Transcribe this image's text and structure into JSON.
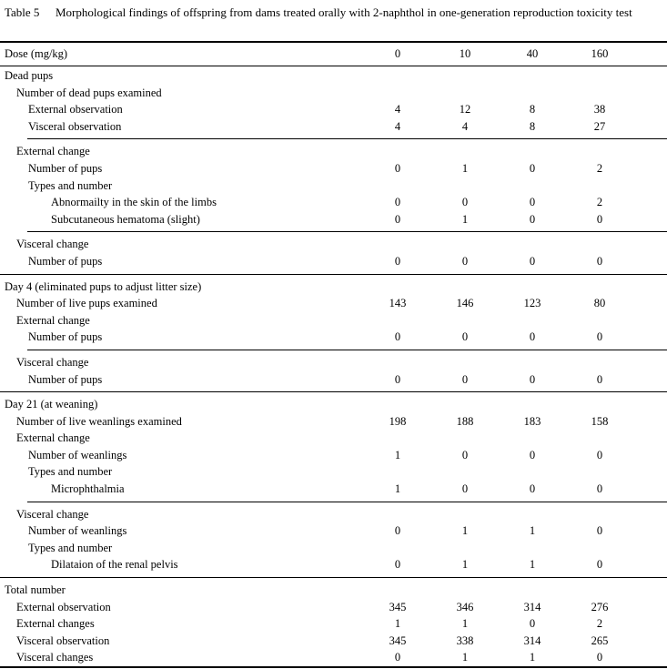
{
  "title": {
    "label": "Table 5",
    "text": "Morphological findings of offspring from dams treated orally with 2-naphthol in one-generation reproduction toxicity test"
  },
  "header": {
    "label": "Dose (mg/kg)",
    "doses": [
      "0",
      "10",
      "40",
      "160"
    ]
  },
  "rows": [
    {
      "label": "Dead pups",
      "indent": 0,
      "values": null
    },
    {
      "label": "Number of dead pups examined",
      "indent": 1,
      "values": null
    },
    {
      "label": "External observation",
      "indent": 2,
      "values": [
        "4",
        "12",
        "8",
        "38"
      ]
    },
    {
      "label": "Visceral observation",
      "indent": 2,
      "values": [
        "4",
        "4",
        "8",
        "27"
      ]
    },
    {
      "rule": "partial"
    },
    {
      "label": "External change",
      "indent": 1,
      "values": null
    },
    {
      "label": "Number of pups",
      "indent": 2,
      "values": [
        "0",
        "1",
        "0",
        "2"
      ]
    },
    {
      "label": "Types and number",
      "indent": 2,
      "values": null
    },
    {
      "label": "Abnormailty in the skin of the limbs",
      "indent": 3,
      "values": [
        "0",
        "0",
        "0",
        "2"
      ]
    },
    {
      "label": "Subcutaneous hematoma (slight)",
      "indent": 3,
      "values": [
        "0",
        "1",
        "0",
        "0"
      ]
    },
    {
      "rule": "partial"
    },
    {
      "label": "Visceral change",
      "indent": 1,
      "values": null
    },
    {
      "label": "Number of pups",
      "indent": 2,
      "values": [
        "0",
        "0",
        "0",
        "0"
      ]
    },
    {
      "rule": "full"
    },
    {
      "label": "Day 4 (eliminated pups to adjust litter size)",
      "indent": 0,
      "values": null
    },
    {
      "label": "Number of live pups examined",
      "indent": 1,
      "values": [
        "143",
        "146",
        "123",
        "80"
      ]
    },
    {
      "label": "External change",
      "indent": 1,
      "values": null
    },
    {
      "label": "Number of pups",
      "indent": 2,
      "values": [
        "0",
        "0",
        "0",
        "0"
      ]
    },
    {
      "rule": "partial"
    },
    {
      "label": "Visceral change",
      "indent": 1,
      "values": null
    },
    {
      "label": "Number of pups",
      "indent": 2,
      "values": [
        "0",
        "0",
        "0",
        "0"
      ]
    },
    {
      "rule": "full"
    },
    {
      "label": "Day 21 (at weaning)",
      "indent": 0,
      "values": null
    },
    {
      "label": "Number of live weanlings examined",
      "indent": 1,
      "values": [
        "198",
        "188",
        "183",
        "158"
      ]
    },
    {
      "label": "External change",
      "indent": 1,
      "values": null
    },
    {
      "label": "Number of weanlings",
      "indent": 2,
      "values": [
        "1",
        "0",
        "0",
        "0"
      ]
    },
    {
      "label": "Types and number",
      "indent": 2,
      "values": null
    },
    {
      "label": "Microphthalmia",
      "indent": 3,
      "values": [
        "1",
        "0",
        "0",
        "0"
      ]
    },
    {
      "rule": "partial"
    },
    {
      "label": "Visceral change",
      "indent": 1,
      "values": null
    },
    {
      "label": "Number of weanlings",
      "indent": 2,
      "values": [
        "0",
        "1",
        "1",
        "0"
      ]
    },
    {
      "label": "Types and number",
      "indent": 2,
      "values": null
    },
    {
      "label": "Dilataion of the renal pelvis",
      "indent": 3,
      "values": [
        "0",
        "1",
        "1",
        "0"
      ]
    },
    {
      "rule": "full"
    },
    {
      "label": "Total number",
      "indent": 0,
      "values": null
    },
    {
      "label": "External observation",
      "indent": 1,
      "values": [
        "345",
        "346",
        "314",
        "276"
      ]
    },
    {
      "label": "External changes",
      "indent": 1,
      "values": [
        "1",
        "1",
        "0",
        "2"
      ]
    },
    {
      "label": "Visceral observation",
      "indent": 1,
      "values": [
        "345",
        "338",
        "314",
        "265"
      ]
    },
    {
      "label": "Visceral changes",
      "indent": 1,
      "values": [
        "0",
        "1",
        "1",
        "0"
      ]
    }
  ]
}
